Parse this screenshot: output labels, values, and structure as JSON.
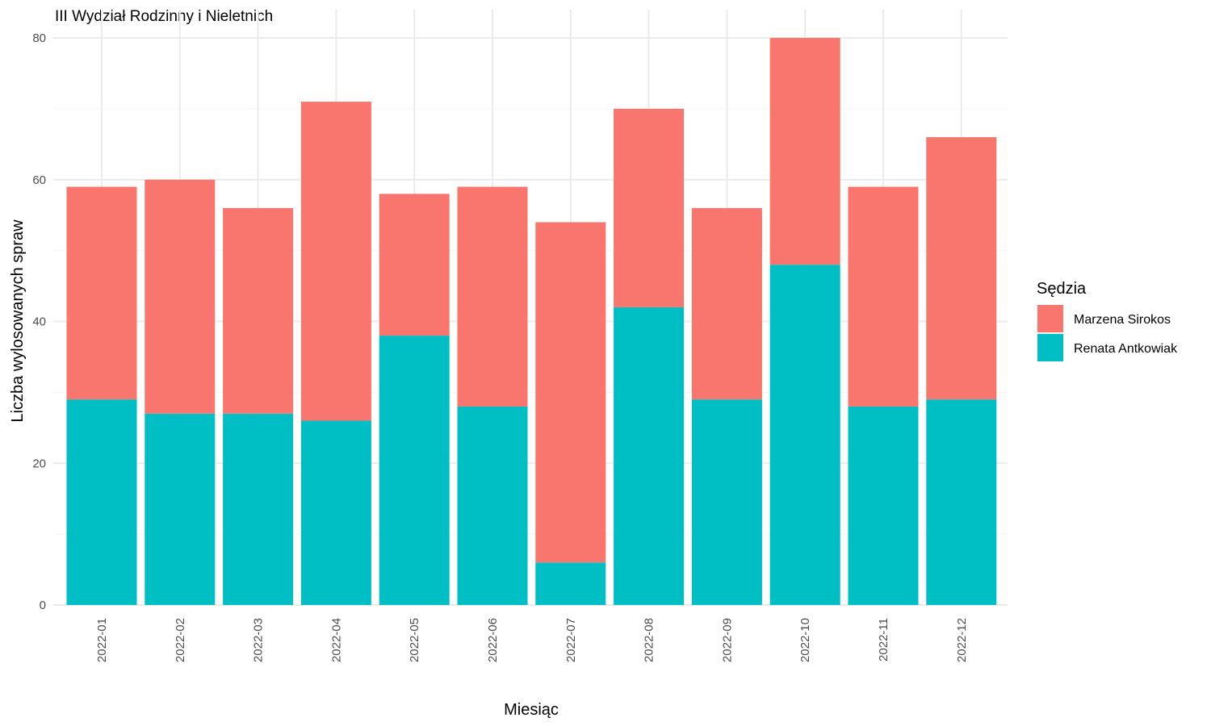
{
  "chart_data": {
    "type": "bar",
    "stacked": true,
    "title": "III Wydział Rodzinny i Nieletnich",
    "xlabel": "Miesiąc",
    "ylabel": "Liczba wylosowanych spraw",
    "ylim": [
      0,
      80
    ],
    "yticks": [
      0,
      20,
      40,
      60,
      80
    ],
    "grid": true,
    "x_tick_rotation": "vertical",
    "legend": {
      "title": "Sędzia",
      "position": "right"
    },
    "categories": [
      "2022-01",
      "2022-02",
      "2022-03",
      "2022-04",
      "2022-05",
      "2022-06",
      "2022-07",
      "2022-08",
      "2022-09",
      "2022-10",
      "2022-11",
      "2022-12"
    ],
    "series": [
      {
        "name": "Marzena Sirokos",
        "color": "#F8766D",
        "values": [
          30,
          33,
          29,
          45,
          20,
          31,
          48,
          28,
          27,
          32,
          31,
          37
        ]
      },
      {
        "name": "Renata Antkowiak",
        "color": "#00BFC4",
        "values": [
          29,
          27,
          27,
          26,
          38,
          28,
          6,
          42,
          29,
          48,
          28,
          29
        ]
      }
    ]
  }
}
